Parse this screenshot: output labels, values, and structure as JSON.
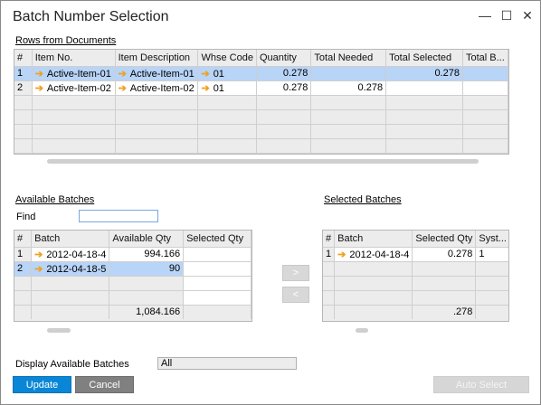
{
  "window": {
    "title": "Batch Number Selection",
    "minimize": "—",
    "maximize": "☐",
    "close": "✕"
  },
  "rows_section": {
    "title": "Rows from Documents",
    "columns": [
      "#",
      "Item No.",
      "Item Description",
      "Whse Code",
      "Quantity",
      "Total Needed",
      "Total Selected",
      "Total B..."
    ],
    "rows": [
      {
        "num": "1",
        "item_no": "Active-Item-01",
        "item_desc": "Active-Item-01",
        "whse": "01",
        "qty": "0.278",
        "needed": "",
        "selected": "0.278",
        "total_b": ""
      },
      {
        "num": "2",
        "item_no": "Active-Item-02",
        "item_desc": "Active-Item-02",
        "whse": "01",
        "qty": "0.278",
        "needed": "0.278",
        "selected": "",
        "total_b": ""
      }
    ]
  },
  "available_section": {
    "title": "Available Batches",
    "find_label": "Find",
    "find_value": "",
    "columns": [
      "#",
      "Batch",
      "Available Qty",
      "Selected Qty"
    ],
    "rows": [
      {
        "num": "1",
        "batch": "2012-04-18-4",
        "avail": "994.166",
        "sel": ""
      },
      {
        "num": "2",
        "batch": "2012-04-18-5",
        "avail": "90",
        "sel": ""
      }
    ],
    "total_avail": "1,084.166"
  },
  "selected_section": {
    "title": "Selected Batches",
    "columns": [
      "#",
      "Batch",
      "Selected Qty",
      "Syst..."
    ],
    "rows": [
      {
        "num": "1",
        "batch": "2012-04-18-4",
        "sel": "0.278",
        "syst": "1"
      }
    ],
    "total_sel": ".278"
  },
  "move_buttons": {
    "add": ">",
    "remove": "<"
  },
  "display": {
    "label": "Display Available Batches",
    "value": "All"
  },
  "footer": {
    "update": "Update",
    "cancel": "Cancel",
    "auto_select": "Auto Select"
  },
  "colors": {
    "accent": "#0a86d6",
    "selection": "#b8d4f6",
    "arrow": "#f0a020"
  }
}
